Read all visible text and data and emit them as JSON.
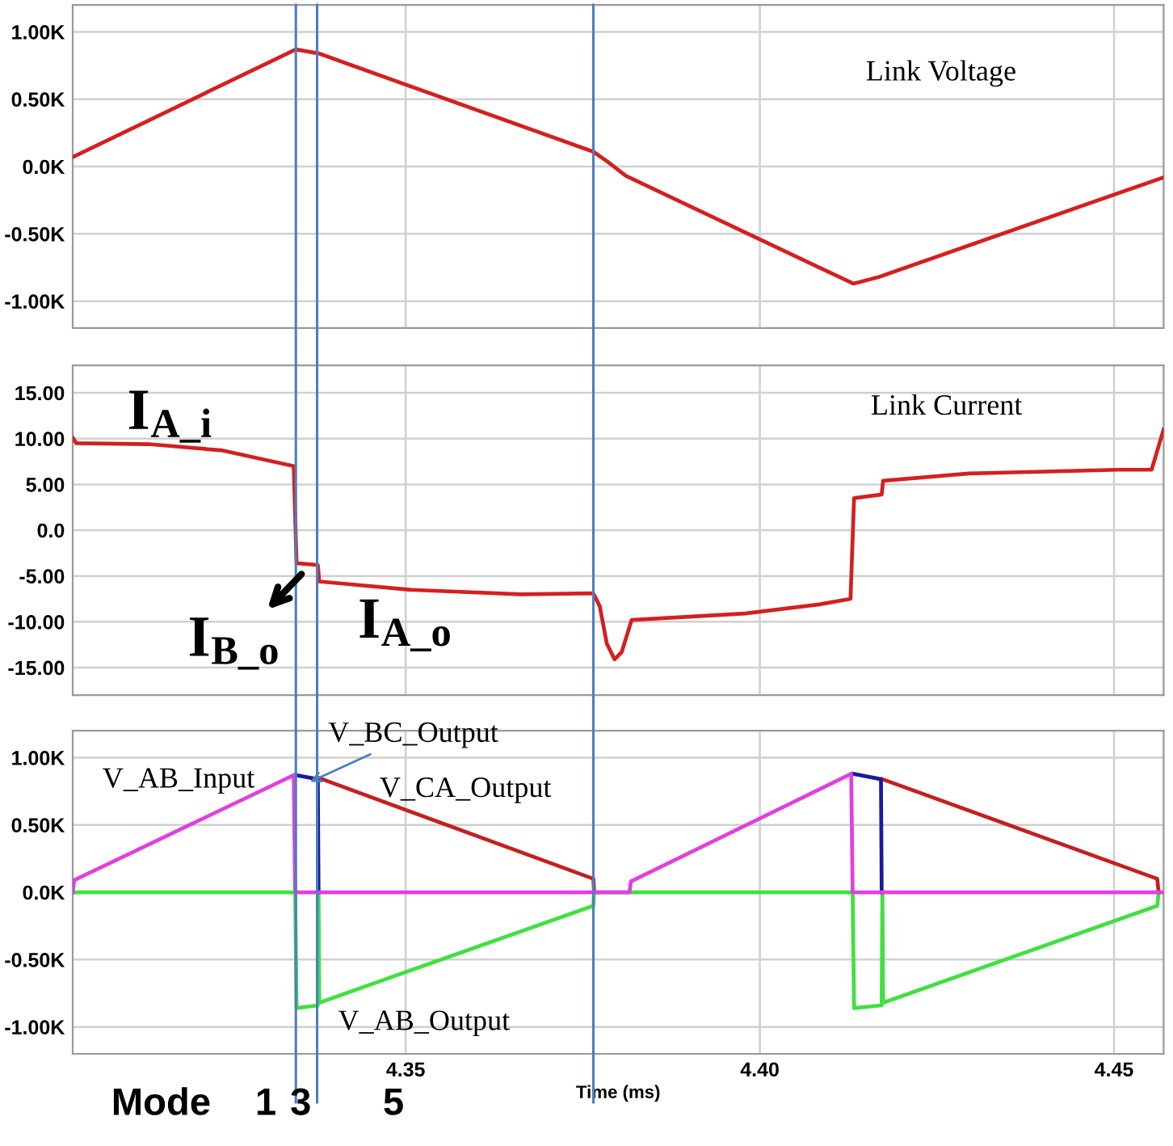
{
  "chart_data": [
    {
      "type": "line",
      "xlim": [
        4.303,
        4.457
      ],
      "xticks": [
        {
          "value": 4.35,
          "label": null
        },
        {
          "value": 4.4,
          "label": null
        },
        {
          "value": 4.45,
          "label": null
        }
      ],
      "ylim": [
        -1.2,
        1.2
      ],
      "yticks": [
        {
          "value": -1.0,
          "label": "-1.00K"
        },
        {
          "value": -0.5,
          "label": "-0.50K"
        },
        {
          "value": 0,
          "label": "0.0K"
        },
        {
          "value": 0.5,
          "label": "0.50K"
        },
        {
          "value": 1.0,
          "label": "1.00K"
        }
      ],
      "grid": true,
      "tick_labels": "y",
      "series": [
        {
          "color": "#d42020",
          "x": [
            4.303,
            4.3345,
            4.3377,
            4.3765,
            4.3784,
            4.3811,
            4.4132,
            4.4168,
            4.457
          ],
          "values": [
            0.07,
            0.87,
            0.84,
            0.11,
            0.04,
            -0.07,
            -0.87,
            -0.82,
            -0.08
          ]
        }
      ],
      "ref_lines": [
        {
          "axis": "x",
          "value": 4.3345,
          "color": "#4a7fc0"
        },
        {
          "axis": "x",
          "value": 4.3375,
          "color": "#4a7fc0"
        },
        {
          "axis": "x",
          "value": 4.3765,
          "color": "#4a7fc0"
        }
      ],
      "annotations": [
        "Link Voltage"
      ]
    },
    {
      "type": "line",
      "xlim": [
        4.303,
        4.457
      ],
      "xticks": [
        {
          "value": 4.35,
          "label": null
        },
        {
          "value": 4.4,
          "label": null
        },
        {
          "value": 4.45,
          "label": null
        }
      ],
      "ylim": [
        -18,
        18
      ],
      "yticks": [
        {
          "value": -15,
          "label": "-15.00"
        },
        {
          "value": -10,
          "label": "-10.00"
        },
        {
          "value": -5,
          "label": "-5.00"
        },
        {
          "value": 0,
          "label": "0.0"
        },
        {
          "value": 5,
          "label": "5.00"
        },
        {
          "value": 10,
          "label": "10.00"
        },
        {
          "value": 15,
          "label": "15.00"
        }
      ],
      "grid": true,
      "tick_labels": "y",
      "series": [
        {
          "color": "#d42020",
          "x": [
            4.303,
            4.3035,
            4.3137,
            4.3242,
            4.3342,
            4.3346,
            4.3376,
            4.3378,
            4.3505,
            4.3663,
            4.3765,
            4.3774,
            4.3784,
            4.3795,
            4.3805,
            4.3819,
            4.3979,
            4.4084,
            4.4128,
            4.4133,
            4.4172,
            4.4174,
            4.4295,
            4.4505,
            4.4553,
            4.457
          ],
          "values": [
            10.1,
            9.5,
            9.4,
            8.7,
            7.0,
            -3.6,
            -3.8,
            -5.6,
            -6.5,
            -7.0,
            -6.9,
            -8.3,
            -12.4,
            -14.1,
            -13.3,
            -9.8,
            -9.1,
            -8.1,
            -7.5,
            3.5,
            3.9,
            5.4,
            6.2,
            6.6,
            6.6,
            11.0
          ]
        }
      ],
      "ref_lines": [
        {
          "axis": "x",
          "value": 4.3345,
          "color": "#4a7fc0"
        },
        {
          "axis": "x",
          "value": 4.3375,
          "color": "#4a7fc0"
        },
        {
          "axis": "x",
          "value": 4.3765,
          "color": "#4a7fc0"
        }
      ],
      "annotations": [
        "Link Current",
        "I$_{A_i}$",
        {
          "text": "I$_{B_o}$",
          "x": 4.3353,
          "y": -4.8
        },
        "I$_{A_o}$"
      ]
    },
    {
      "type": "line",
      "xlim": [
        4.303,
        4.457
      ],
      "xticks": [
        4.35,
        {
          "value": 4.4,
          "label": "4.40"
        },
        4.45
      ],
      "ylim": [
        -1.2,
        1.2
      ],
      "yticks": [
        {
          "value": -1.0,
          "label": "-1.00K"
        },
        {
          "value": -0.5,
          "label": "-0.50K"
        },
        {
          "value": 0,
          "label": "0.0K"
        },
        {
          "value": 0.5,
          "label": "0.50K"
        },
        {
          "value": 1.0,
          "label": "1.00K"
        }
      ],
      "grid": true,
      "xlabel": "Time (ms)",
      "series": [
        {
          "color": "#40e040",
          "x": [
            4.303,
            4.3344,
            4.3346,
            4.3376,
            4.3377,
            4.3378,
            4.3765,
            4.3766,
            4.4131,
            4.4133,
            4.4172,
            4.4173,
            4.4174,
            4.4561,
            4.4563
          ],
          "values": [
            0,
            0,
            -0.86,
            -0.84,
            0,
            -0.82,
            -0.1,
            0,
            0,
            -0.86,
            -0.84,
            0,
            -0.82,
            -0.1,
            0
          ]
        },
        {
          "color": "#c42020",
          "x": [
            4.3377,
            4.3765,
            4.3766,
            4.4,
            4.4173,
            4.4561,
            4.4563
          ],
          "values": [
            0.85,
            0.1,
            0,
            null,
            0.84,
            0.1,
            0
          ]
        },
        {
          "color": "#1a1aa0",
          "x": [
            4.3345,
            4.3376,
            4.3377,
            4.4,
            4.4131,
            4.4171,
            4.4172
          ],
          "values": [
            0.87,
            0.84,
            0,
            null,
            0.88,
            0.84,
            0
          ]
        },
        {
          "color": "#e040e0",
          "x": [
            4.303,
            4.3032,
            4.3342,
            4.3344,
            4.3816,
            4.3818,
            4.4129,
            4.4131,
            4.457
          ],
          "values": [
            0,
            0.09,
            0.87,
            0,
            0,
            0.08,
            0.88,
            0,
            0
          ]
        }
      ],
      "ref_lines": [
        {
          "axis": "x",
          "value": 4.3345,
          "color": "#4a7fc0"
        },
        {
          "axis": "x",
          "value": 4.3375,
          "color": "#4a7fc0"
        },
        {
          "axis": "x",
          "value": 4.3765,
          "color": "#4a7fc0"
        }
      ],
      "annotations": [
        "V_AB_Input",
        {
          "text": "V_BC_Output",
          "x": 4.3365,
          "y": 0.82
        },
        "V_CA_Output",
        "V_AB_Output",
        "Mode",
        "1",
        "3",
        "5"
      ]
    }
  ]
}
